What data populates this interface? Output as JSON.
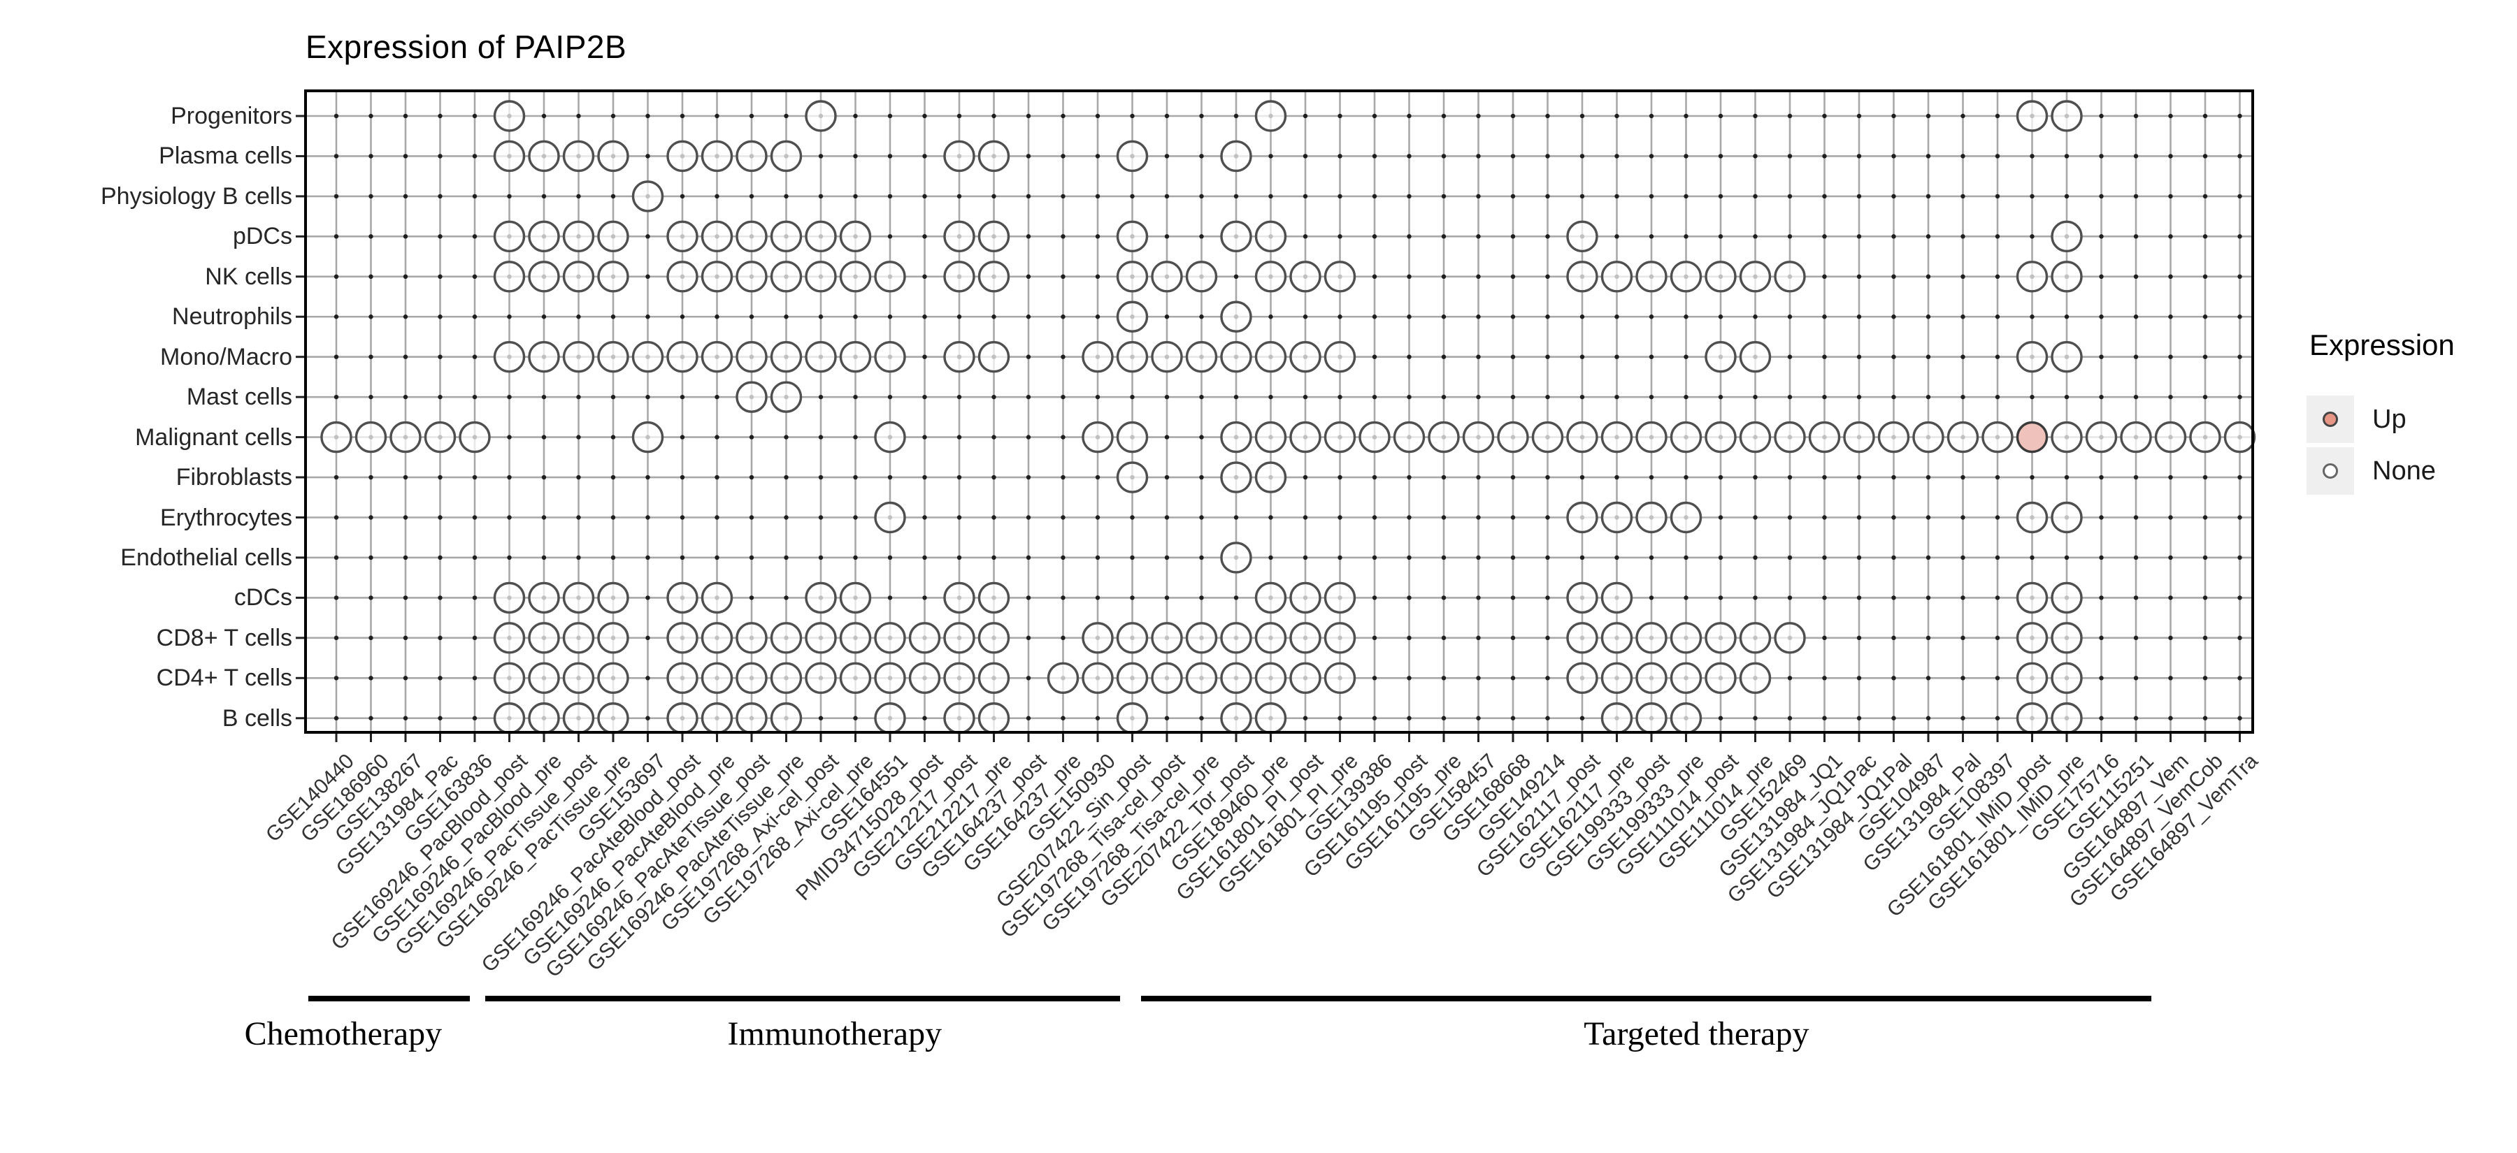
{
  "title": "Expression of PAIP2B",
  "legend": {
    "title": "Expression",
    "items": [
      {
        "label": "Up",
        "fill": "#E79685",
        "stroke": "#444444"
      },
      {
        "label": "None",
        "fill": "#FFFFFF",
        "stroke": "#666666"
      }
    ]
  },
  "groups": [
    {
      "label": "Chemotherapy",
      "span_cols": [
        0.2,
        4.85
      ],
      "label_center_col": 1.2
    },
    {
      "label": "Immunotherapy",
      "span_cols": [
        5.3,
        23.65
      ],
      "label_center_col": 15.4
    },
    {
      "label": "Targeted therapy",
      "span_cols": [
        24.25,
        53.45
      ],
      "label_center_col": 40.3
    }
  ],
  "colors": {
    "none_fill": "rgba(255,255,255,0.72)",
    "up_fill": "#EFC3BB",
    "circle_stroke": "#4f4f4f",
    "grid": "#a8a8a8",
    "grid_dot": "#1f1f1f",
    "panel_border": "#000000",
    "tick": "#222222"
  },
  "chart_data": {
    "type": "heatmap",
    "subtype": "dot-grid (presence/absence matrix, ggplot style)",
    "title": "Expression of PAIP2B",
    "legend_title": "Expression",
    "legend_entries": [
      "Up",
      "None"
    ],
    "legend_position": "right",
    "grid": "on",
    "x_labels": [
      "GSE140440",
      "GSE186960",
      "GSE138267",
      "GSE131984_Pac",
      "GSE163836",
      "GSE169246_PacBlood_post",
      "GSE169246_PacBlood_pre",
      "GSE169246_PacTissue_post",
      "GSE169246_PacTissue_pre",
      "GSE153697",
      "GSE169246_PacAteBlood_post",
      "GSE169246_PacAteBlood_pre",
      "GSE169246_PacAteTissue_post",
      "GSE169246_PacAteTissue_pre",
      "GSE197268_Axi-cel_post",
      "GSE197268_Axi-cel_pre",
      "GSE164551",
      "PMID34715028_post",
      "GSE212217_post",
      "GSE212217_pre",
      "GSE164237_post",
      "GSE164237_pre",
      "GSE150930",
      "GSE207422_Sin_post",
      "GSE197268_Tisa-cel_post",
      "GSE197268_Tisa-cel_pre",
      "GSE207422_Tor_post",
      "GSE189460_pre",
      "GSE161801_PI_post",
      "GSE161801_PI_pre",
      "GSE139386",
      "GSE161195_post",
      "GSE161195_pre",
      "GSE158457",
      "GSE168668",
      "GSE149214",
      "GSE162117_post",
      "GSE162117_pre",
      "GSE199333_post",
      "GSE199333_pre",
      "GSE111014_post",
      "GSE111014_pre",
      "GSE152469",
      "GSE131984_JQ1",
      "GSE131984_JQ1Pac",
      "GSE131984_JQ1Pal",
      "GSE104987",
      "GSE131984_Pal",
      "GSE108397",
      "GSE161801_IMiD_post",
      "GSE161801_IMiD_pre",
      "GSE175716",
      "GSE115251",
      "GSE164897_Vem",
      "GSE164897_VemCob",
      "GSE164897_VemTra"
    ],
    "y_labels": [
      "Progenitors",
      "Plasma cells",
      "Physiology B cells",
      "pDCs",
      "NK cells",
      "Neutrophils",
      "Mono/Macro",
      "Mast cells",
      "Malignant cells",
      "Fibroblasts",
      "Erythrocytes",
      "Endothelial cells",
      "cDCs",
      "CD8+ T cells",
      "CD4+ T cells",
      "B cells"
    ],
    "cells_none": {
      "Progenitors": [
        6,
        15,
        28,
        50,
        51
      ],
      "Plasma cells": [
        6,
        7,
        8,
        9,
        11,
        12,
        13,
        14,
        19,
        20,
        24,
        27
      ],
      "Physiology B cells": [
        10
      ],
      "pDCs": [
        6,
        7,
        8,
        9,
        11,
        12,
        13,
        14,
        15,
        16,
        19,
        20,
        24,
        27,
        28,
        37,
        51
      ],
      "NK cells": [
        6,
        7,
        8,
        9,
        11,
        12,
        13,
        14,
        15,
        16,
        17,
        19,
        20,
        24,
        25,
        26,
        28,
        29,
        30,
        37,
        38,
        39,
        40,
        41,
        42,
        43,
        50,
        51
      ],
      "Neutrophils": [
        24,
        27
      ],
      "Mono/Macro": [
        6,
        7,
        8,
        9,
        10,
        11,
        12,
        13,
        14,
        15,
        16,
        17,
        19,
        20,
        23,
        24,
        25,
        26,
        27,
        28,
        29,
        30,
        41,
        42,
        50,
        51
      ],
      "Mast cells": [
        13,
        14
      ],
      "Malignant cells": [
        1,
        2,
        3,
        4,
        5,
        10,
        17,
        23,
        24,
        27,
        28,
        29,
        30,
        31,
        32,
        33,
        34,
        35,
        36,
        37,
        38,
        39,
        40,
        41,
        42,
        43,
        44,
        45,
        46,
        47,
        48,
        49,
        51,
        52,
        53,
        54,
        55,
        56
      ],
      "Fibroblasts": [
        24,
        27,
        28
      ],
      "Erythrocytes": [
        17,
        37,
        38,
        39,
        40,
        50,
        51
      ],
      "Endothelial cells": [
        27
      ],
      "cDCs": [
        6,
        7,
        8,
        9,
        11,
        12,
        15,
        16,
        19,
        20,
        28,
        29,
        30,
        37,
        38,
        50,
        51
      ],
      "CD8+ T cells": [
        6,
        7,
        8,
        9,
        11,
        12,
        13,
        14,
        15,
        16,
        17,
        18,
        19,
        20,
        23,
        24,
        25,
        26,
        27,
        28,
        29,
        30,
        37,
        38,
        39,
        40,
        41,
        42,
        43,
        50,
        51
      ],
      "CD4+ T cells": [
        6,
        7,
        8,
        9,
        11,
        12,
        13,
        14,
        15,
        16,
        17,
        18,
        19,
        20,
        22,
        23,
        24,
        25,
        26,
        27,
        28,
        29,
        30,
        37,
        38,
        39,
        40,
        41,
        42,
        50,
        51
      ],
      "B cells": [
        6,
        7,
        8,
        9,
        11,
        12,
        13,
        14,
        17,
        19,
        20,
        24,
        27,
        28,
        38,
        39,
        40,
        50,
        51
      ]
    },
    "cells_up": [
      {
        "row": "Malignant cells",
        "col": 50,
        "x_label": "GSE161801_IMiD_post"
      }
    ],
    "x_groups": [
      {
        "label": "Chemotherapy",
        "cols": [
          1,
          5
        ]
      },
      {
        "label": "Immunotherapy",
        "cols": [
          6,
          23
        ]
      },
      {
        "label": "Targeted therapy",
        "cols": [
          24,
          53
        ]
      }
    ]
  }
}
